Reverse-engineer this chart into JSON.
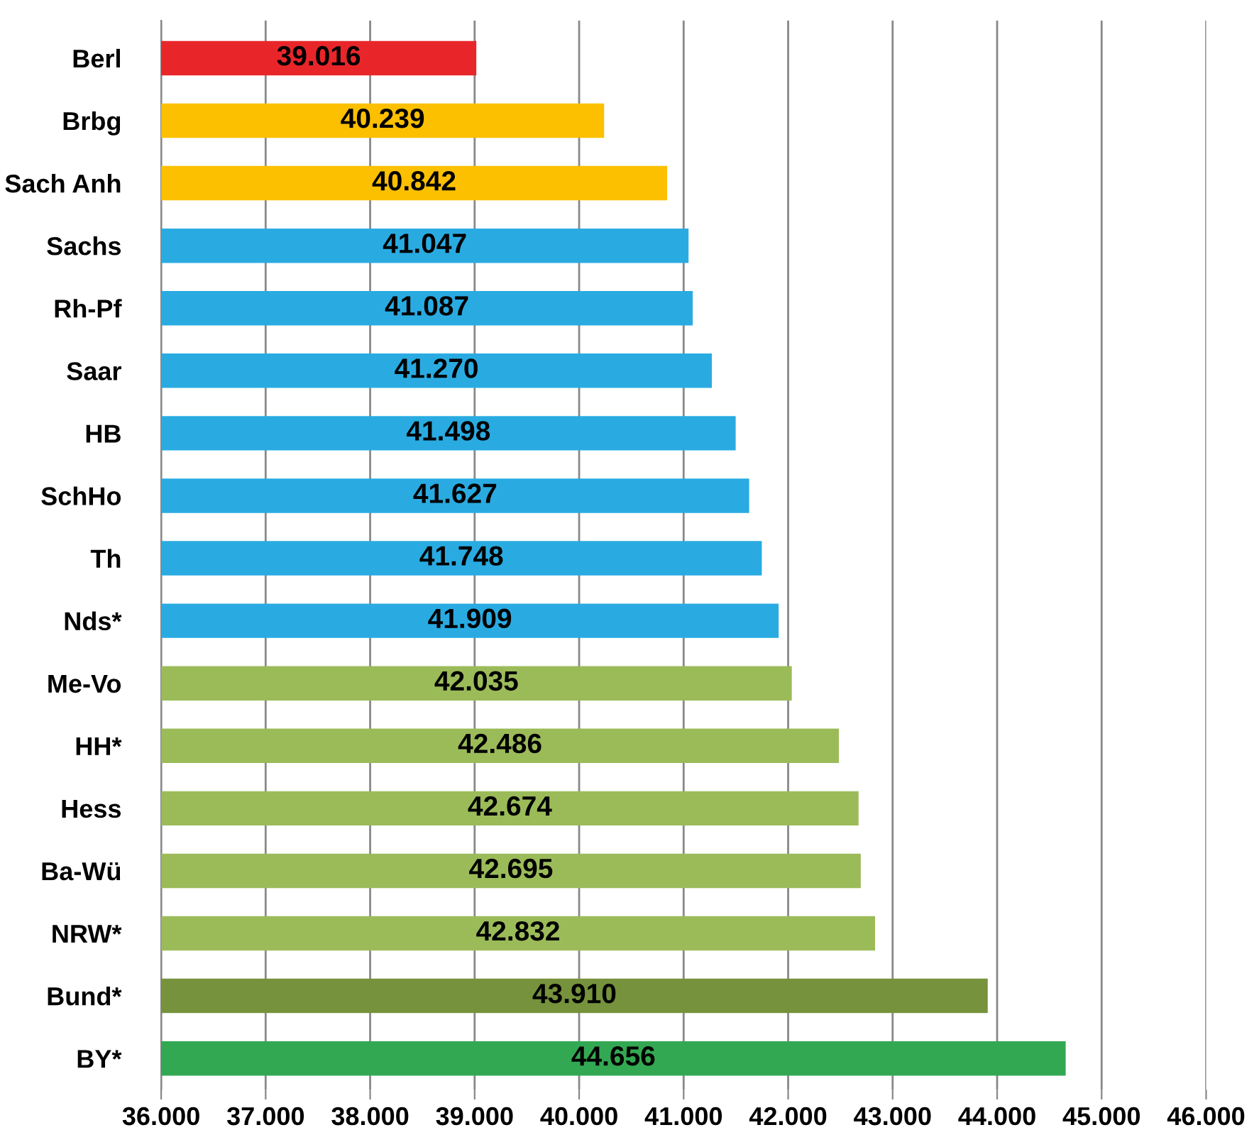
{
  "chart_data": {
    "type": "bar",
    "orientation": "horizontal",
    "categories": [
      "Berl",
      "Brbg",
      "Sach Anh",
      "Sachs",
      "Rh-Pf",
      "Saar",
      "HB",
      "SchHo",
      "Th",
      "Nds*",
      "Me-Vo",
      "HH*",
      "Hess",
      "Ba-Wü",
      "NRW*",
      "Bund*",
      "BY*"
    ],
    "values": [
      39016,
      40239,
      40842,
      41047,
      41087,
      41270,
      41498,
      41627,
      41748,
      41909,
      42035,
      42486,
      42674,
      42695,
      42832,
      43910,
      44656
    ],
    "value_labels": [
      "39.016",
      "40.239",
      "40.842",
      "41.047",
      "41.087",
      "41.270",
      "41.498",
      "41.627",
      "41.748",
      "41.909",
      "42.035",
      "42.486",
      "42.674",
      "42.695",
      "42.832",
      "43.910",
      "44.656"
    ],
    "colors": [
      "#e8262a",
      "#fcc000",
      "#fcc000",
      "#29abe2",
      "#29abe2",
      "#29abe2",
      "#29abe2",
      "#29abe2",
      "#29abe2",
      "#29abe2",
      "#9bbb59",
      "#9bbb59",
      "#9bbb59",
      "#9bbb59",
      "#9bbb59",
      "#76923c",
      "#33a852"
    ],
    "xlim": [
      36000,
      46000
    ],
    "xticks": [
      {
        "value": 36000,
        "label": "36.000"
      },
      {
        "value": 37000,
        "label": "37.000"
      },
      {
        "value": 38000,
        "label": "38.000"
      },
      {
        "value": 39000,
        "label": "39.000"
      },
      {
        "value": 40000,
        "label": "40.000"
      },
      {
        "value": 41000,
        "label": "41.000"
      },
      {
        "value": 42000,
        "label": "42.000"
      },
      {
        "value": 43000,
        "label": "43.000"
      },
      {
        "value": 44000,
        "label": "44.000"
      },
      {
        "value": 45000,
        "label": "45.000"
      },
      {
        "value": 46000,
        "label": "46.000"
      }
    ],
    "grid": "x"
  }
}
